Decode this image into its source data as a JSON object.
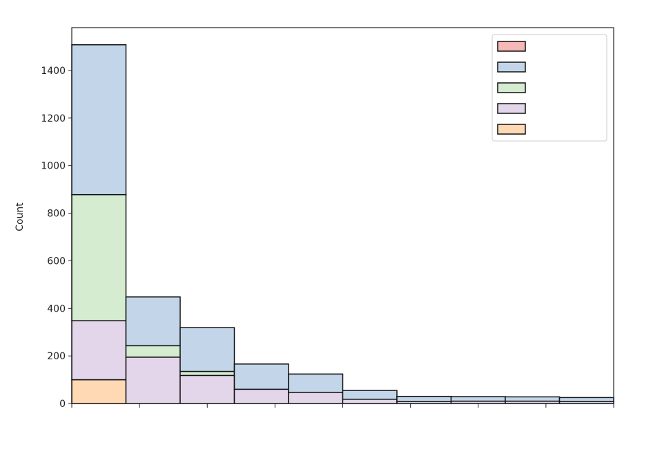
{
  "chart_data": {
    "type": "bar",
    "stacked": true,
    "title": "",
    "xlabel": "",
    "ylabel": "Count",
    "ylim": [
      0,
      1580
    ],
    "yticks": [
      0,
      200,
      400,
      600,
      800,
      1000,
      1200,
      1400
    ],
    "bins": 10,
    "grid": false,
    "legend_position": "top-right",
    "series": [
      {
        "color": "#ffd9b3",
        "values": [
          100,
          0,
          0,
          0,
          0,
          0,
          0,
          0,
          0,
          0
        ]
      },
      {
        "color": "#e4d6ea",
        "values": [
          248,
          195,
          118,
          60,
          47,
          18,
          8,
          10,
          10,
          8
        ]
      },
      {
        "color": "#d5ecd1",
        "values": [
          530,
          48,
          17,
          0,
          0,
          0,
          0,
          0,
          0,
          0
        ]
      },
      {
        "color": "#c3d6e9",
        "values": [
          630,
          205,
          184,
          106,
          77,
          37,
          22,
          19,
          18,
          17
        ]
      },
      {
        "color": "#f7b8b8",
        "values": [
          0,
          0,
          0,
          0,
          0,
          0,
          0,
          0,
          0,
          0
        ]
      }
    ],
    "legend": [
      {
        "color": "#f7b8b8"
      },
      {
        "color": "#c3d6e9"
      },
      {
        "color": "#d5ecd1"
      },
      {
        "color": "#e4d6ea"
      },
      {
        "color": "#ffd9b3"
      }
    ]
  }
}
